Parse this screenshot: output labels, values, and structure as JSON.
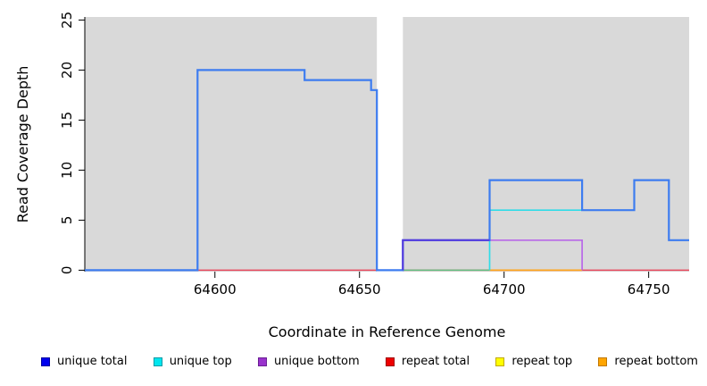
{
  "chart_data": {
    "type": "line",
    "subtype": "step-coverage",
    "title": "",
    "xlabel": "Coordinate in Reference Genome",
    "ylabel": "Read Coverage Depth",
    "xlim": [
      64555,
      64764
    ],
    "ylim": [
      0,
      25
    ],
    "x_ticks": [
      64600,
      64650,
      64700,
      64750
    ],
    "y_ticks": [
      0,
      5,
      10,
      15,
      20,
      25
    ],
    "grid": false,
    "legend_position": "bottom",
    "background_color": "#D9D9D9",
    "masked_region": {
      "start": 64656,
      "end": 64665,
      "color": "#FFFFFF"
    },
    "series": [
      {
        "name": "unique total",
        "color": "#0000EE",
        "steps": [
          [
            64555,
            0
          ],
          [
            64594,
            20
          ],
          [
            64631,
            19
          ],
          [
            64654,
            18
          ],
          [
            64656,
            0
          ],
          [
            64665,
            3
          ],
          [
            64695,
            9
          ],
          [
            64727,
            6
          ],
          [
            64745,
            9
          ],
          [
            64757,
            3
          ]
        ],
        "end_x": 64764
      },
      {
        "name": "unique top",
        "color": "#00E6EE",
        "steps": [
          [
            64555,
            0
          ],
          [
            64695,
            6
          ],
          [
            64745,
            9
          ],
          [
            64757,
            3
          ]
        ],
        "end_x": 64764
      },
      {
        "name": "unique bottom",
        "color": "#9932CC",
        "steps": [
          [
            64555,
            0
          ],
          [
            64665,
            3
          ],
          [
            64727,
            0
          ]
        ],
        "end_x": 64764
      },
      {
        "name": "repeat total",
        "color": "#EE0000",
        "steps": [
          [
            64555,
            0
          ]
        ],
        "end_x": 64764
      },
      {
        "name": "repeat top",
        "color": "#FFFF00",
        "steps": [
          [
            64555,
            0
          ]
        ],
        "end_x": 64764
      },
      {
        "name": "repeat bottom",
        "color": "#FFA500",
        "steps": [
          [
            64555,
            0
          ]
        ],
        "end_x": 64764
      }
    ],
    "visible_lines": [
      {
        "name": "repeat-total-zero-line",
        "color": "#E8495E",
        "width": 1.5,
        "points": [
          [
            64555,
            0
          ],
          [
            64764,
            0
          ]
        ]
      },
      {
        "name": "zero-line-overlap-green",
        "color": "#63BE82",
        "width": 1.5,
        "points": [
          [
            64665,
            0
          ],
          [
            64695,
            0
          ]
        ]
      },
      {
        "name": "repeat-bottom-zero-line",
        "color": "#FFA51E",
        "width": 1.7,
        "points": [
          [
            64695,
            0
          ],
          [
            64727,
            0
          ]
        ]
      },
      {
        "name": "unique-top-line",
        "color": "#30DCE8",
        "width": 1.7,
        "points": [
          [
            64695,
            0
          ],
          [
            64695,
            6
          ],
          [
            64727,
            6
          ]
        ]
      },
      {
        "name": "unique-bottom-line",
        "color": "#B968E8",
        "width": 1.7,
        "points": [
          [
            64665,
            0
          ],
          [
            64665,
            3
          ],
          [
            64727,
            3
          ],
          [
            64727,
            0
          ]
        ]
      },
      {
        "name": "unique-total-line",
        "color": "#3D7CF0",
        "width": 2.2,
        "points": [
          [
            64555,
            0
          ],
          [
            64594,
            0
          ],
          [
            64594,
            20
          ],
          [
            64631,
            20
          ],
          [
            64631,
            19
          ],
          [
            64654,
            19
          ],
          [
            64654,
            18
          ],
          [
            64656,
            18
          ],
          [
            64656,
            0
          ],
          [
            64665,
            0
          ],
          [
            64665,
            3
          ],
          [
            64695,
            3
          ],
          [
            64695,
            9
          ],
          [
            64727,
            9
          ],
          [
            64727,
            6
          ],
          [
            64745,
            6
          ],
          [
            64745,
            9
          ],
          [
            64757,
            9
          ],
          [
            64757,
            3
          ],
          [
            64764,
            3
          ]
        ]
      },
      {
        "name": "total-bottom-overlap-line",
        "color": "#5537DC",
        "width": 2.0,
        "points": [
          [
            64665,
            0
          ],
          [
            64665,
            3
          ],
          [
            64695,
            3
          ]
        ]
      }
    ],
    "legend": [
      {
        "label": "unique total",
        "fill": "#0000EE",
        "border": "#0000A0"
      },
      {
        "label": "unique top",
        "fill": "#00E6EE",
        "border": "#009AA6"
      },
      {
        "label": "unique bottom",
        "fill": "#9932CC",
        "border": "#6A1F93"
      },
      {
        "label": "repeat total",
        "fill": "#EE0000",
        "border": "#A00000"
      },
      {
        "label": "repeat top",
        "fill": "#FFFF00",
        "border": "#C0A800"
      },
      {
        "label": "repeat bottom",
        "fill": "#FFA500",
        "border": "#C07800"
      }
    ]
  }
}
